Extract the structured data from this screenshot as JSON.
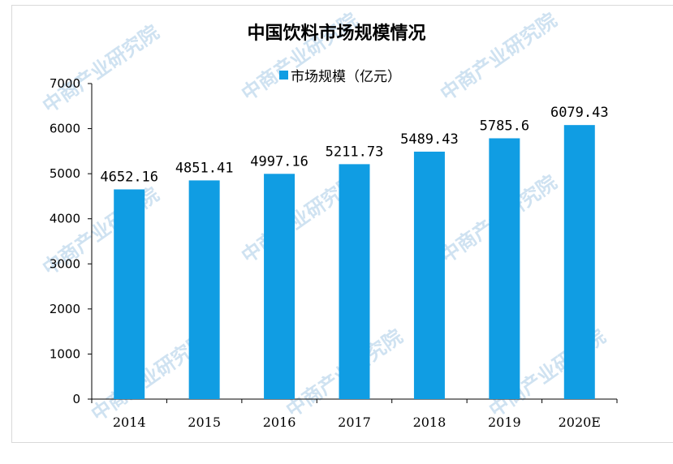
{
  "chart_data": {
    "type": "bar",
    "title": "中国饮料市场规模情况",
    "categories": [
      "2014",
      "2015",
      "2016",
      "2017",
      "2018",
      "2019",
      "2020E"
    ],
    "series": [
      {
        "name": "市场规模（亿元）",
        "values": [
          4652.16,
          4851.41,
          4997.16,
          5211.73,
          5489.43,
          5785.6,
          6079.43
        ]
      }
    ],
    "data_labels": [
      "4652.16",
      "4851.41",
      "4997.16",
      "5211.73",
      "5489.43",
      "5785.6",
      "6079.43"
    ],
    "y_ticks": [
      "0",
      "1000",
      "2000",
      "3000",
      "4000",
      "5000",
      "6000",
      "7000"
    ],
    "ylim": [
      0,
      7000
    ],
    "xlabel": "",
    "ylabel": "",
    "grid": false,
    "legend_position": "top-center",
    "bar_color": "#109de3"
  },
  "watermark": "中商产业研究院"
}
